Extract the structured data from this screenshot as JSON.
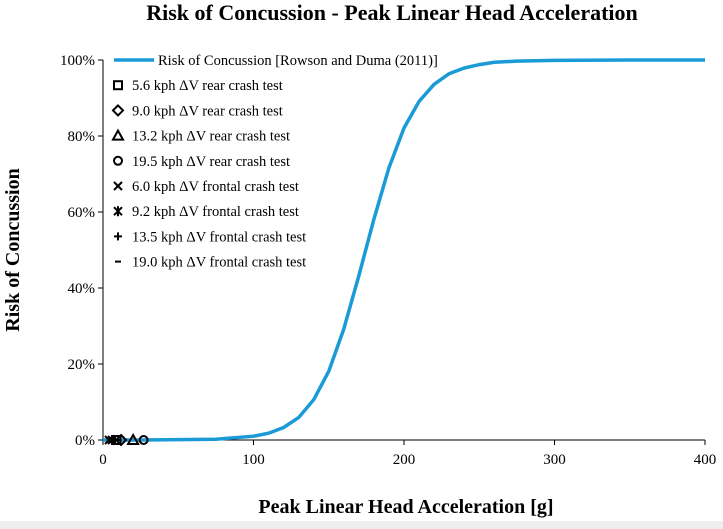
{
  "chart_data": {
    "type": "line",
    "title": "Risk of Concussion - Peak Linear Head Acceleration",
    "xlabel": "Peak Linear Head Acceleration [g]",
    "ylabel": "Risk of Concussion",
    "xlim": [
      0,
      400
    ],
    "ylim": [
      0,
      100
    ],
    "x_ticks": [
      0,
      100,
      200,
      300,
      400
    ],
    "y_ticks": [
      0,
      20,
      40,
      60,
      80,
      100
    ],
    "x_tick_labels": [
      "0",
      "100",
      "200",
      "300",
      "400"
    ],
    "y_tick_labels": [
      "0%",
      "20%",
      "40%",
      "60%",
      "80%",
      "100%"
    ],
    "grid": false,
    "legend_position": "top-left",
    "curve": {
      "name": "Risk of Concussion [Rowson and Duma (2011)]",
      "color": "#1a9ad6",
      "x": [
        0,
        25,
        50,
        75,
        100,
        110,
        120,
        130,
        140,
        150,
        160,
        170,
        180,
        190,
        200,
        210,
        220,
        230,
        240,
        250,
        260,
        275,
        300,
        350,
        400
      ],
      "y": [
        0.0,
        0.0,
        0.1,
        0.2,
        1.0,
        1.8,
        3.3,
        5.9,
        10.6,
        18.1,
        29.2,
        43.3,
        58.1,
        71.6,
        82.1,
        89.1,
        93.6,
        96.4,
        97.9,
        98.8,
        99.4,
        99.7,
        99.9,
        100.0,
        100.0
      ]
    },
    "series": [
      {
        "name": "5.6 kph ΔV rear crash test",
        "marker": "square",
        "x": [
          9
        ],
        "y": [
          0
        ]
      },
      {
        "name": "9.0 kph ΔV rear crash test",
        "marker": "diamond",
        "x": [
          12
        ],
        "y": [
          0
        ]
      },
      {
        "name": "13.2 kph ΔV rear crash test",
        "marker": "triangle",
        "x": [
          20
        ],
        "y": [
          0
        ]
      },
      {
        "name": "19.5 kph ΔV rear crash test",
        "marker": "circle",
        "x": [
          27
        ],
        "y": [
          0
        ]
      },
      {
        "name": "6.0 kph ΔV frontal crash test",
        "marker": "x",
        "x": [
          4
        ],
        "y": [
          0
        ]
      },
      {
        "name": "9.2 kph ΔV frontal crash test",
        "marker": "star",
        "x": [
          6
        ],
        "y": [
          0
        ]
      },
      {
        "name": "13.5 kph ΔV frontal crash test",
        "marker": "plus",
        "x": [
          8
        ],
        "y": [
          0
        ]
      },
      {
        "name": "19.0 kph ΔV frontal crash test",
        "marker": "dash",
        "x": [
          10
        ],
        "y": [
          0
        ]
      }
    ]
  }
}
